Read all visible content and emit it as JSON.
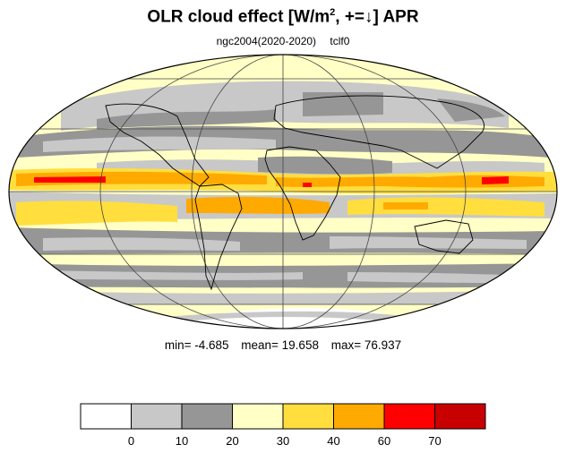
{
  "title": {
    "prefix": "OLR cloud effect [W/m",
    "sup": "2",
    "suffix": ", +=↓]",
    "month": "APR"
  },
  "subtitle": {
    "run": "ngc2004(2020-2020)",
    "variable": "tclf0"
  },
  "stats": {
    "min": "min=  -4.685",
    "mean": "mean=  19.658",
    "max": "max=  76.937"
  },
  "colorbar": {
    "labels": [
      "0",
      "10",
      "20",
      "30",
      "40",
      "60",
      "70"
    ],
    "colors": [
      "#ffffff",
      "#c8c8c8",
      "#969696",
      "#ffffc6",
      "#ffde3e",
      "#ffaa00",
      "#ff0000",
      "#c80000"
    ]
  }
}
